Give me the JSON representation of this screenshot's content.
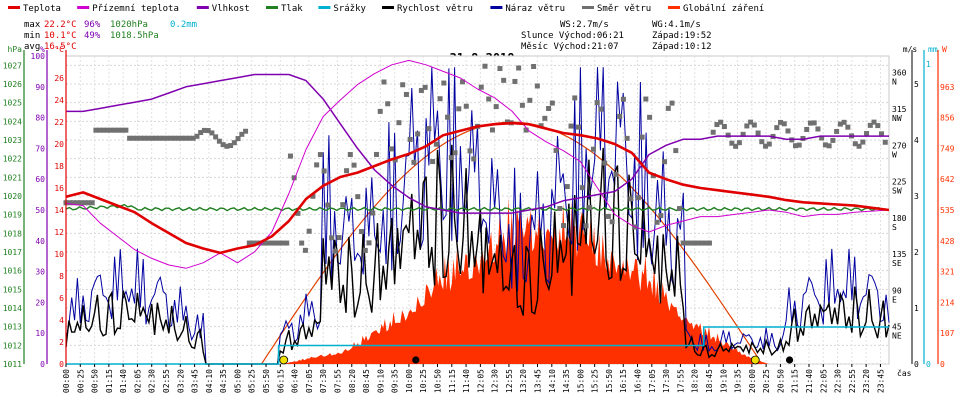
{
  "legend": [
    {
      "label": "Teplota",
      "color": "#e00000"
    },
    {
      "label": "Přízemní teplota",
      "color": "#d000d0"
    },
    {
      "label": "Vlhkost",
      "color": "#8000b0"
    },
    {
      "label": "Tlak",
      "color": "#208020"
    },
    {
      "label": "Srážky",
      "color": "#00b0d0"
    },
    {
      "label": "Rychlost větru",
      "color": "#000000"
    },
    {
      "label": "Náraz větru",
      "color": "#0000a0"
    },
    {
      "label": "Směr větru",
      "color": "#707070"
    },
    {
      "label": "Globální záření",
      "color": "#ff3000"
    }
  ],
  "stats": {
    "max": {
      "label": "max",
      "temp": "22.2°C",
      "hum": "96%",
      "press": "1020hPa",
      "rain": "0.2mm"
    },
    "min": {
      "label": "min",
      "temp": "10.1°C",
      "hum": "49%",
      "press": "1018.5hPa"
    },
    "avg": {
      "label": "avg",
      "temp": "16.5°C"
    }
  },
  "info": {
    "ws": "WS:2.7m/s",
    "wg": "WG:4.1m/s",
    "sun": "Slunce Východ:06:21",
    "sunset": "Západ:19:52",
    "moon": "Měsíc  Východ:21:07",
    "moonset": "Západ:10:12"
  },
  "colors": {
    "temp": "#e00000",
    "ground": "#d000d0",
    "hum": "#8000b0",
    "press": "#208020",
    "rain": "#00b0d0",
    "wind": "#000000",
    "gust": "#0000a0",
    "dir": "#707070",
    "rad": "#ff3000",
    "rad_curve": "#e04000"
  },
  "chart_data": {
    "type": "line",
    "title": "31.8.2018",
    "xlabel": "čas",
    "x_ticks": [
      "00:00",
      "00:25",
      "00:50",
      "01:15",
      "01:40",
      "02:05",
      "02:30",
      "02:55",
      "03:20",
      "03:45",
      "04:10",
      "04:35",
      "05:00",
      "05:25",
      "05:50",
      "06:15",
      "06:40",
      "07:05",
      "07:30",
      "07:55",
      "08:20",
      "08:45",
      "09:10",
      "09:35",
      "10:00",
      "10:25",
      "10:50",
      "11:15",
      "11:40",
      "12:05",
      "12:30",
      "12:55",
      "13:20",
      "13:45",
      "14:10",
      "14:35",
      "15:00",
      "15:25",
      "15:50",
      "16:15",
      "16:40",
      "17:05",
      "17:30",
      "17:55",
      "18:20",
      "18:45",
      "19:10",
      "19:35",
      "20:00",
      "20:25",
      "20:50",
      "21:15",
      "21:40",
      "22:05",
      "22:30",
      "22:55",
      "23:20",
      "23:45"
    ],
    "axes": {
      "hpa": {
        "unit": "hPa",
        "ticks": [
          "1011",
          "1012",
          "1013",
          "1014",
          "1015",
          "1016",
          "1017",
          "1018",
          "1019",
          "1020",
          "1021",
          "1022",
          "1023",
          "1024",
          "1025",
          "1026",
          "1027"
        ],
        "range": [
          1011,
          1027.5
        ]
      },
      "percent": {
        "unit": "%",
        "ticks": [
          "0",
          "10",
          "20",
          "30",
          "40",
          "50",
          "60",
          "70",
          "80",
          "90",
          "100"
        ],
        "range": [
          0,
          100
        ]
      },
      "celsius": {
        "unit": "°C",
        "ticks": [
          "0",
          "2",
          "4",
          "6",
          "8",
          "10",
          "12",
          "14",
          "16",
          "18",
          "20",
          "22",
          "24",
          "26"
        ],
        "range": [
          0,
          28
        ]
      },
      "direction": {
        "unit": "",
        "ticks": [
          "45 NE",
          "90 E",
          "135 SE",
          "180 S",
          "225 SW",
          "270 W",
          "315 NW",
          "360 N"
        ]
      },
      "ms": {
        "unit": "m/s",
        "ticks": [
          "0",
          "1",
          "2",
          "3",
          "4",
          "5"
        ],
        "range": [
          0,
          5.5
        ]
      },
      "mm": {
        "unit": "mm",
        "ticks": [
          "0",
          "1"
        ],
        "range": [
          0,
          1
        ]
      },
      "wm2": {
        "unit": "W",
        "ticks": [
          "0",
          "107",
          "214",
          "321",
          "428",
          "535",
          "642",
          "749",
          "856",
          "963"
        ],
        "range": [
          0,
          1070
        ]
      }
    },
    "series": [
      {
        "name": "Teplota",
        "unit": "°C",
        "points": [
          [
            0,
            15.2
          ],
          [
            1,
            15.6
          ],
          [
            2,
            15.0
          ],
          [
            3,
            14.4
          ],
          [
            4,
            13.8
          ],
          [
            5,
            12.8
          ],
          [
            6,
            11.9
          ],
          [
            7,
            11.0
          ],
          [
            8,
            10.5
          ],
          [
            9,
            10.1
          ],
          [
            10,
            10.5
          ],
          [
            11,
            10.8
          ],
          [
            12,
            11.6
          ],
          [
            13,
            13.0
          ],
          [
            14,
            15.0
          ],
          [
            15,
            16.2
          ],
          [
            16,
            17.0
          ],
          [
            17,
            17.4
          ],
          [
            18,
            18.0
          ],
          [
            19,
            18.6
          ],
          [
            20,
            19.1
          ],
          [
            21,
            19.8
          ],
          [
            22,
            20.8
          ],
          [
            23,
            21.2
          ],
          [
            24,
            21.6
          ],
          [
            25,
            21.8
          ],
          [
            26,
            21.9
          ],
          [
            27,
            21.8
          ],
          [
            28,
            21.4
          ],
          [
            29,
            21.0
          ],
          [
            30,
            20.8
          ],
          [
            31,
            20.5
          ],
          [
            32,
            20.0
          ],
          [
            33,
            19.2
          ],
          [
            34,
            17.4
          ],
          [
            35,
            16.8
          ],
          [
            36,
            16.3
          ],
          [
            37,
            16.0
          ],
          [
            38,
            15.8
          ],
          [
            39,
            15.6
          ],
          [
            40,
            15.4
          ],
          [
            41,
            15.2
          ],
          [
            42,
            14.9
          ],
          [
            43,
            14.7
          ],
          [
            44,
            14.6
          ],
          [
            45,
            14.5
          ],
          [
            46,
            14.4
          ],
          [
            47,
            14.2
          ],
          [
            48,
            14.0
          ]
        ]
      },
      {
        "name": "Přízemní teplota",
        "unit": "°C",
        "points": [
          [
            0,
            14.6
          ],
          [
            1,
            14.4
          ],
          [
            2,
            12.8
          ],
          [
            3,
            11.6
          ],
          [
            4,
            10.4
          ],
          [
            5,
            9.6
          ],
          [
            6,
            9.0
          ],
          [
            7,
            8.7
          ],
          [
            8,
            9.2
          ],
          [
            9,
            10.1
          ],
          [
            10,
            9.2
          ],
          [
            11,
            10.2
          ],
          [
            12,
            12.0
          ],
          [
            13,
            15.5
          ],
          [
            14,
            19.5
          ],
          [
            15,
            22.5
          ],
          [
            16,
            24.0
          ],
          [
            17,
            25.4
          ],
          [
            18,
            26.4
          ],
          [
            19,
            27.2
          ],
          [
            20,
            27.6
          ],
          [
            21,
            27.2
          ],
          [
            22,
            26.6
          ],
          [
            23,
            26.0
          ],
          [
            24,
            25.0
          ],
          [
            25,
            24.2
          ],
          [
            26,
            23.0
          ],
          [
            27,
            21.2
          ],
          [
            28,
            20.2
          ],
          [
            29,
            19.4
          ],
          [
            30,
            18.4
          ],
          [
            31,
            16.0
          ],
          [
            32,
            13.6
          ],
          [
            33,
            12.6
          ],
          [
            34,
            12.0
          ],
          [
            35,
            12.6
          ],
          [
            36,
            13.0
          ],
          [
            37,
            13.4
          ],
          [
            38,
            13.4
          ],
          [
            39,
            13.6
          ],
          [
            40,
            13.8
          ],
          [
            41,
            14.0
          ],
          [
            42,
            13.8
          ],
          [
            43,
            13.4
          ],
          [
            44,
            13.6
          ],
          [
            45,
            13.6
          ],
          [
            46,
            13.8
          ],
          [
            47,
            13.9
          ],
          [
            48,
            14.0
          ]
        ]
      },
      {
        "name": "Vlhkost",
        "unit": "%",
        "points": [
          [
            0,
            82
          ],
          [
            1,
            82
          ],
          [
            2,
            83
          ],
          [
            3,
            84
          ],
          [
            4,
            85
          ],
          [
            5,
            86
          ],
          [
            6,
            88
          ],
          [
            7,
            90
          ],
          [
            8,
            91
          ],
          [
            9,
            92
          ],
          [
            10,
            93
          ],
          [
            11,
            94
          ],
          [
            12,
            94
          ],
          [
            13,
            94
          ],
          [
            14,
            92
          ],
          [
            15,
            86
          ],
          [
            16,
            78
          ],
          [
            17,
            70
          ],
          [
            18,
            63
          ],
          [
            19,
            58
          ],
          [
            20,
            54
          ],
          [
            21,
            51
          ],
          [
            22,
            50
          ],
          [
            23,
            49
          ],
          [
            24,
            49
          ],
          [
            25,
            49
          ],
          [
            26,
            49
          ],
          [
            27,
            50
          ],
          [
            28,
            51
          ],
          [
            29,
            53
          ],
          [
            30,
            54
          ],
          [
            31,
            55
          ],
          [
            32,
            56
          ],
          [
            33,
            60
          ],
          [
            34,
            68
          ],
          [
            35,
            71
          ],
          [
            36,
            73
          ],
          [
            37,
            73
          ],
          [
            38,
            74
          ],
          [
            39,
            74
          ],
          [
            40,
            74
          ],
          [
            41,
            74
          ],
          [
            42,
            73
          ],
          [
            43,
            73
          ],
          [
            44,
            74
          ],
          [
            45,
            74
          ],
          [
            46,
            74
          ],
          [
            47,
            74
          ],
          [
            48,
            74
          ]
        ]
      },
      {
        "name": "Tlak",
        "unit": "hPa",
        "points": [
          [
            0,
            1019.3
          ],
          [
            4,
            1019.5
          ],
          [
            8,
            1019.7
          ],
          [
            12,
            1019.6
          ],
          [
            16,
            1019.8
          ],
          [
            20,
            1019.9
          ],
          [
            24,
            1019.4
          ],
          [
            28,
            1019.2
          ],
          [
            32,
            1019.1
          ],
          [
            36,
            1018.9
          ],
          [
            40,
            1019.4
          ],
          [
            44,
            1019.6
          ],
          [
            48,
            1019.8
          ]
        ]
      },
      {
        "name": "Srážky",
        "unit": "mm",
        "points": [
          [
            0,
            0
          ],
          [
            6.2,
            0
          ],
          [
            6.2,
            0.2
          ],
          [
            18.6,
            0.2
          ],
          [
            18.6,
            0.4
          ],
          [
            24,
            0.4
          ]
        ]
      },
      {
        "name": "Globální záření",
        "unit": "W",
        "points": [
          [
            6.3,
            0
          ],
          [
            8,
            60
          ],
          [
            9,
            150
          ],
          [
            10,
            280
          ],
          [
            11,
            430
          ],
          [
            12,
            560
          ],
          [
            13,
            670
          ],
          [
            14,
            720
          ],
          [
            15,
            650
          ],
          [
            16,
            560
          ],
          [
            17,
            420
          ],
          [
            18,
            250
          ],
          [
            19,
            120
          ],
          [
            20,
            30
          ],
          [
            20.5,
            0
          ]
        ]
      }
    ]
  }
}
